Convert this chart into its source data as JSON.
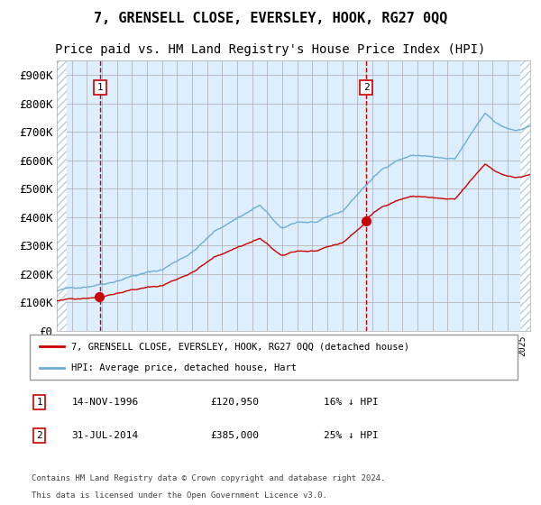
{
  "title": "7, GRENSELL CLOSE, EVERSLEY, HOOK, RG27 0QQ",
  "subtitle": "Price paid vs. HM Land Registry's House Price Index (HPI)",
  "ylabel_ticks": [
    "£0",
    "£100K",
    "£200K",
    "£300K",
    "£400K",
    "£500K",
    "£600K",
    "£700K",
    "£800K",
    "£900K"
  ],
  "ytick_vals": [
    0,
    100000,
    200000,
    300000,
    400000,
    500000,
    600000,
    700000,
    800000,
    900000
  ],
  "ylim": [
    0,
    950000
  ],
  "xlim_start": 1994.0,
  "xlim_end": 2025.5,
  "sale1_date": 1996.87,
  "sale1_price": 120950,
  "sale1_label": "1",
  "sale2_date": 2014.58,
  "sale2_price": 385000,
  "sale2_label": "2",
  "legend1": "7, GRENSELL CLOSE, EVERSLEY, HOOK, RG27 0QQ (detached house)",
  "legend2": "HPI: Average price, detached house, Hart",
  "footer_line1": "Contains HM Land Registry data © Crown copyright and database right 2024.",
  "footer_line2": "This data is licensed under the Open Government Licence v3.0.",
  "hpi_color": "#6baed6",
  "price_color": "#cc0000",
  "sale_marker_color": "#cc0000",
  "vline_color": "#cc0000",
  "bg_color": "#ddeeff",
  "hatch_color": "#bbccdd",
  "grid_color": "#aaaaaa",
  "title_fontsize": 11,
  "subtitle_fontsize": 10,
  "axis_fontsize": 9
}
